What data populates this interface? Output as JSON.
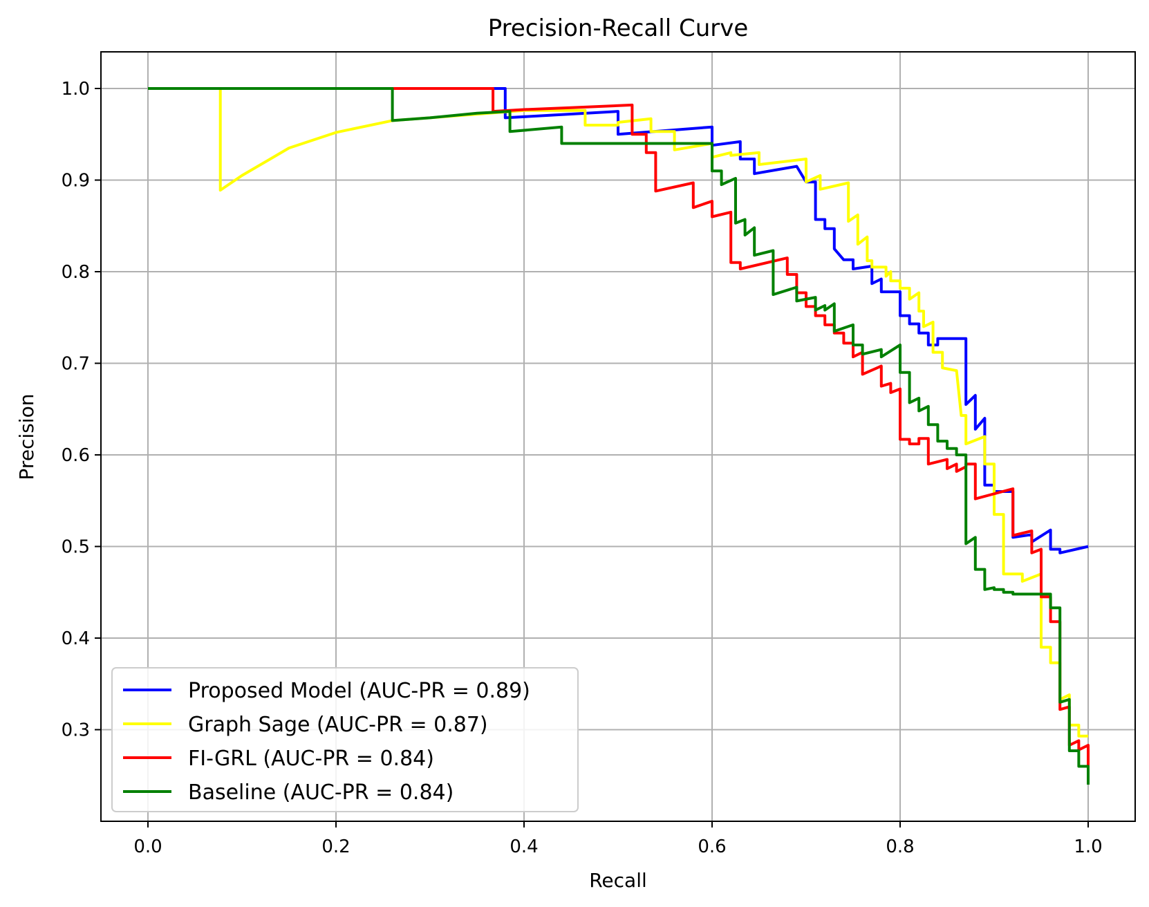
{
  "chart_data": {
    "type": "line",
    "title": "Precision-Recall Curve",
    "xlabel": "Recall",
    "ylabel": "Precision",
    "xlim": [
      -0.05,
      1.05
    ],
    "ylim": [
      0.2,
      1.04
    ],
    "grid": true,
    "legend_position": "lower-left",
    "x_ticks": [
      "0.0",
      "0.2",
      "0.4",
      "0.6",
      "0.8",
      "1.0"
    ],
    "y_ticks": [
      "0.3",
      "0.4",
      "0.5",
      "0.6",
      "0.7",
      "0.8",
      "0.9",
      "1.0"
    ],
    "series": [
      {
        "name": "Proposed Model (AUC-PR = 0.89)",
        "color": "#0000ff",
        "points": [
          [
            0.0,
            1.0
          ],
          [
            0.38,
            1.0
          ],
          [
            0.38,
            0.968
          ],
          [
            0.5,
            0.975
          ],
          [
            0.5,
            0.95
          ],
          [
            0.6,
            0.958
          ],
          [
            0.6,
            0.938
          ],
          [
            0.63,
            0.942
          ],
          [
            0.63,
            0.923
          ],
          [
            0.645,
            0.923
          ],
          [
            0.645,
            0.907
          ],
          [
            0.69,
            0.915
          ],
          [
            0.7,
            0.898
          ],
          [
            0.71,
            0.898
          ],
          [
            0.71,
            0.857
          ],
          [
            0.72,
            0.857
          ],
          [
            0.72,
            0.847
          ],
          [
            0.73,
            0.847
          ],
          [
            0.73,
            0.825
          ],
          [
            0.74,
            0.813
          ],
          [
            0.75,
            0.813
          ],
          [
            0.75,
            0.803
          ],
          [
            0.77,
            0.806
          ],
          [
            0.77,
            0.787
          ],
          [
            0.78,
            0.792
          ],
          [
            0.78,
            0.778
          ],
          [
            0.8,
            0.778
          ],
          [
            0.8,
            0.752
          ],
          [
            0.81,
            0.752
          ],
          [
            0.81,
            0.743
          ],
          [
            0.82,
            0.743
          ],
          [
            0.82,
            0.733
          ],
          [
            0.83,
            0.733
          ],
          [
            0.83,
            0.72
          ],
          [
            0.84,
            0.72
          ],
          [
            0.84,
            0.727
          ],
          [
            0.87,
            0.727
          ],
          [
            0.87,
            0.655
          ],
          [
            0.88,
            0.665
          ],
          [
            0.88,
            0.628
          ],
          [
            0.89,
            0.64
          ],
          [
            0.89,
            0.567
          ],
          [
            0.9,
            0.567
          ],
          [
            0.9,
            0.56
          ],
          [
            0.92,
            0.56
          ],
          [
            0.92,
            0.51
          ],
          [
            0.94,
            0.513
          ],
          [
            0.94,
            0.505
          ],
          [
            0.96,
            0.518
          ],
          [
            0.96,
            0.497
          ],
          [
            0.97,
            0.497
          ],
          [
            0.97,
            0.493
          ],
          [
            1.0,
            0.5
          ]
        ]
      },
      {
        "name": "Graph Sage (AUC-PR = 0.87)",
        "color": "#ffff00",
        "points": [
          [
            0.0,
            1.0
          ],
          [
            0.077,
            1.0
          ],
          [
            0.077,
            0.889
          ],
          [
            0.1,
            0.905
          ],
          [
            0.15,
            0.935
          ],
          [
            0.2,
            0.952
          ],
          [
            0.26,
            0.965
          ],
          [
            0.3,
            0.968
          ],
          [
            0.35,
            0.972
          ],
          [
            0.4,
            0.976
          ],
          [
            0.465,
            0.976
          ],
          [
            0.465,
            0.96
          ],
          [
            0.5,
            0.96
          ],
          [
            0.5,
            0.963
          ],
          [
            0.535,
            0.967
          ],
          [
            0.535,
            0.953
          ],
          [
            0.56,
            0.953
          ],
          [
            0.56,
            0.933
          ],
          [
            0.6,
            0.94
          ],
          [
            0.6,
            0.925
          ],
          [
            0.62,
            0.93
          ],
          [
            0.62,
            0.927
          ],
          [
            0.65,
            0.93
          ],
          [
            0.65,
            0.917
          ],
          [
            0.7,
            0.923
          ],
          [
            0.7,
            0.898
          ],
          [
            0.715,
            0.905
          ],
          [
            0.715,
            0.89
          ],
          [
            0.745,
            0.897
          ],
          [
            0.745,
            0.855
          ],
          [
            0.755,
            0.862
          ],
          [
            0.755,
            0.83
          ],
          [
            0.765,
            0.838
          ],
          [
            0.765,
            0.812
          ],
          [
            0.77,
            0.812
          ],
          [
            0.77,
            0.805
          ],
          [
            0.785,
            0.805
          ],
          [
            0.785,
            0.795
          ],
          [
            0.79,
            0.8
          ],
          [
            0.79,
            0.79
          ],
          [
            0.8,
            0.79
          ],
          [
            0.8,
            0.782
          ],
          [
            0.81,
            0.782
          ],
          [
            0.81,
            0.77
          ],
          [
            0.82,
            0.777
          ],
          [
            0.82,
            0.757
          ],
          [
            0.825,
            0.757
          ],
          [
            0.825,
            0.74
          ],
          [
            0.835,
            0.745
          ],
          [
            0.835,
            0.712
          ],
          [
            0.845,
            0.712
          ],
          [
            0.845,
            0.695
          ],
          [
            0.86,
            0.692
          ],
          [
            0.865,
            0.643
          ],
          [
            0.87,
            0.643
          ],
          [
            0.87,
            0.612
          ],
          [
            0.89,
            0.62
          ],
          [
            0.89,
            0.59
          ],
          [
            0.9,
            0.59
          ],
          [
            0.9,
            0.535
          ],
          [
            0.91,
            0.535
          ],
          [
            0.91,
            0.47
          ],
          [
            0.93,
            0.47
          ],
          [
            0.93,
            0.462
          ],
          [
            0.95,
            0.47
          ],
          [
            0.95,
            0.39
          ],
          [
            0.96,
            0.39
          ],
          [
            0.96,
            0.373
          ],
          [
            0.97,
            0.373
          ],
          [
            0.97,
            0.333
          ],
          [
            0.98,
            0.338
          ],
          [
            0.98,
            0.305
          ],
          [
            0.99,
            0.305
          ],
          [
            0.99,
            0.293
          ],
          [
            1.0,
            0.293
          ]
        ]
      },
      {
        "name": "FI-GRL (AUC-PR = 0.84)",
        "color": "#ff0000",
        "points": [
          [
            0.26,
            1.0
          ],
          [
            0.367,
            1.0
          ],
          [
            0.367,
            0.975
          ],
          [
            0.4,
            0.977
          ],
          [
            0.45,
            0.979
          ],
          [
            0.515,
            0.982
          ],
          [
            0.515,
            0.95
          ],
          [
            0.53,
            0.95
          ],
          [
            0.53,
            0.93
          ],
          [
            0.54,
            0.93
          ],
          [
            0.54,
            0.888
          ],
          [
            0.58,
            0.897
          ],
          [
            0.58,
            0.87
          ],
          [
            0.6,
            0.877
          ],
          [
            0.6,
            0.86
          ],
          [
            0.62,
            0.865
          ],
          [
            0.62,
            0.81
          ],
          [
            0.63,
            0.81
          ],
          [
            0.63,
            0.803
          ],
          [
            0.68,
            0.815
          ],
          [
            0.68,
            0.797
          ],
          [
            0.69,
            0.797
          ],
          [
            0.69,
            0.777
          ],
          [
            0.7,
            0.777
          ],
          [
            0.7,
            0.762
          ],
          [
            0.71,
            0.762
          ],
          [
            0.71,
            0.752
          ],
          [
            0.72,
            0.752
          ],
          [
            0.72,
            0.742
          ],
          [
            0.73,
            0.742
          ],
          [
            0.73,
            0.733
          ],
          [
            0.74,
            0.733
          ],
          [
            0.74,
            0.722
          ],
          [
            0.75,
            0.722
          ],
          [
            0.75,
            0.707
          ],
          [
            0.76,
            0.712
          ],
          [
            0.76,
            0.688
          ],
          [
            0.78,
            0.697
          ],
          [
            0.78,
            0.675
          ],
          [
            0.79,
            0.678
          ],
          [
            0.79,
            0.668
          ],
          [
            0.8,
            0.672
          ],
          [
            0.8,
            0.617
          ],
          [
            0.81,
            0.617
          ],
          [
            0.81,
            0.612
          ],
          [
            0.82,
            0.612
          ],
          [
            0.82,
            0.618
          ],
          [
            0.83,
            0.618
          ],
          [
            0.83,
            0.59
          ],
          [
            0.85,
            0.595
          ],
          [
            0.85,
            0.585
          ],
          [
            0.86,
            0.59
          ],
          [
            0.86,
            0.582
          ],
          [
            0.87,
            0.587
          ],
          [
            0.87,
            0.59
          ],
          [
            0.88,
            0.59
          ],
          [
            0.88,
            0.552
          ],
          [
            0.92,
            0.563
          ],
          [
            0.92,
            0.512
          ],
          [
            0.94,
            0.517
          ],
          [
            0.94,
            0.493
          ],
          [
            0.95,
            0.497
          ],
          [
            0.95,
            0.445
          ],
          [
            0.96,
            0.445
          ],
          [
            0.96,
            0.418
          ],
          [
            0.97,
            0.418
          ],
          [
            0.97,
            0.322
          ],
          [
            0.98,
            0.325
          ],
          [
            0.98,
            0.283
          ],
          [
            0.99,
            0.288
          ],
          [
            0.99,
            0.278
          ],
          [
            1.0,
            0.283
          ],
          [
            1.0,
            0.26
          ]
        ]
      },
      {
        "name": "Baseline (AUC-PR = 0.84)",
        "color": "#008000",
        "points": [
          [
            0.0,
            1.0
          ],
          [
            0.26,
            1.0
          ],
          [
            0.26,
            0.965
          ],
          [
            0.3,
            0.968
          ],
          [
            0.35,
            0.973
          ],
          [
            0.385,
            0.975
          ],
          [
            0.385,
            0.953
          ],
          [
            0.44,
            0.958
          ],
          [
            0.44,
            0.94
          ],
          [
            0.6,
            0.94
          ],
          [
            0.6,
            0.91
          ],
          [
            0.61,
            0.91
          ],
          [
            0.61,
            0.895
          ],
          [
            0.625,
            0.902
          ],
          [
            0.625,
            0.853
          ],
          [
            0.635,
            0.857
          ],
          [
            0.635,
            0.84
          ],
          [
            0.645,
            0.848
          ],
          [
            0.645,
            0.818
          ],
          [
            0.665,
            0.823
          ],
          [
            0.665,
            0.775
          ],
          [
            0.69,
            0.783
          ],
          [
            0.69,
            0.768
          ],
          [
            0.71,
            0.772
          ],
          [
            0.71,
            0.758
          ],
          [
            0.72,
            0.763
          ],
          [
            0.72,
            0.758
          ],
          [
            0.73,
            0.765
          ],
          [
            0.73,
            0.735
          ],
          [
            0.75,
            0.742
          ],
          [
            0.75,
            0.72
          ],
          [
            0.76,
            0.72
          ],
          [
            0.76,
            0.71
          ],
          [
            0.78,
            0.715
          ],
          [
            0.78,
            0.707
          ],
          [
            0.8,
            0.72
          ],
          [
            0.8,
            0.69
          ],
          [
            0.81,
            0.69
          ],
          [
            0.81,
            0.657
          ],
          [
            0.82,
            0.662
          ],
          [
            0.82,
            0.648
          ],
          [
            0.83,
            0.653
          ],
          [
            0.83,
            0.633
          ],
          [
            0.84,
            0.633
          ],
          [
            0.84,
            0.615
          ],
          [
            0.85,
            0.615
          ],
          [
            0.85,
            0.607
          ],
          [
            0.86,
            0.607
          ],
          [
            0.86,
            0.6
          ],
          [
            0.87,
            0.6
          ],
          [
            0.87,
            0.503
          ],
          [
            0.88,
            0.51
          ],
          [
            0.88,
            0.475
          ],
          [
            0.89,
            0.475
          ],
          [
            0.89,
            0.453
          ],
          [
            0.9,
            0.455
          ],
          [
            0.9,
            0.453
          ],
          [
            0.91,
            0.453
          ],
          [
            0.91,
            0.45
          ],
          [
            0.92,
            0.45
          ],
          [
            0.92,
            0.448
          ],
          [
            0.96,
            0.448
          ],
          [
            0.96,
            0.433
          ],
          [
            0.97,
            0.433
          ],
          [
            0.97,
            0.33
          ],
          [
            0.98,
            0.333
          ],
          [
            0.98,
            0.277
          ],
          [
            0.99,
            0.277
          ],
          [
            0.99,
            0.26
          ],
          [
            1.0,
            0.26
          ],
          [
            1.0,
            0.24
          ]
        ]
      }
    ]
  }
}
